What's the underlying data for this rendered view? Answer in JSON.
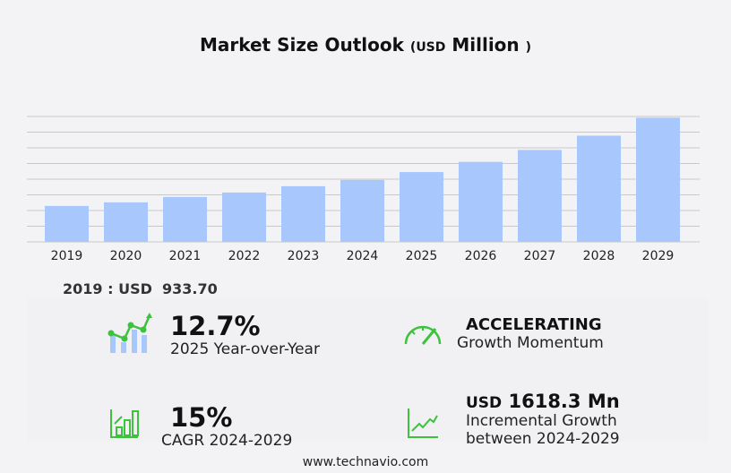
{
  "title": {
    "main": "Market Size Outlook",
    "unit_open": "(",
    "unit_currency": "USD",
    "unit_scale": "Million",
    "unit_close": ")"
  },
  "chart_data": {
    "type": "bar",
    "title": "Market Size Outlook (USD Million)",
    "categories": [
      "2019",
      "2020",
      "2021",
      "2022",
      "2023",
      "2024",
      "2025",
      "2026",
      "2027",
      "2028",
      "2029"
    ],
    "values": [
      933.7,
      1027,
      1167,
      1284,
      1447,
      1610,
      1815,
      2080,
      2390,
      2760,
      3228
    ],
    "ylim": [
      0,
      3260
    ],
    "grid": true,
    "bar_color": "#a8c8fd"
  },
  "base_year": {
    "label": "2019 : USD",
    "value": "933.70"
  },
  "kpis": {
    "yoy": {
      "value": "12.7%",
      "label": "2025 Year-over-Year",
      "icon": "growth-chart-icon"
    },
    "momentum": {
      "value": "ACCELERATING",
      "label": "Growth Momentum",
      "icon": "speedometer-icon"
    },
    "cagr": {
      "value": "15%",
      "label": "CAGR",
      "period": "2024-2029",
      "icon": "bar-growth-icon"
    },
    "incremental": {
      "currency": "USD",
      "value": "1618.3 Mn",
      "label1": "Incremental Growth",
      "label2": "between 2024-2029",
      "icon": "line-growth-icon"
    }
  },
  "colors": {
    "accent": "#3cc23c",
    "bar": "#a8c8fd"
  },
  "footer": "www.technavio.com"
}
